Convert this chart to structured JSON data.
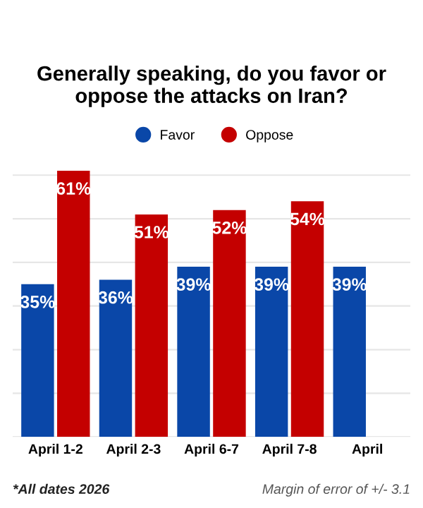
{
  "chart_data": {
    "type": "bar",
    "title": "Generally speaking, do you favor or oppose the attacks on Iran?",
    "categories": [
      "April 1-2",
      "April 2-3",
      "April 6-7",
      "April 7-8",
      "April"
    ],
    "series": [
      {
        "name": "Favor",
        "color": "#0a47a8",
        "values": [
          35,
          36,
          39,
          39,
          39
        ],
        "value_labels": [
          "35%",
          "36%",
          "39%",
          "39%",
          "39%"
        ]
      },
      {
        "name": "Oppose",
        "color": "#c40000",
        "values": [
          61,
          51,
          52,
          54,
          null
        ],
        "value_labels": [
          "61%",
          "51%",
          "52%",
          "54%",
          null
        ]
      }
    ],
    "tick_labels": "x",
    "grid": "y",
    "legend": "top",
    "marker": "circle",
    "annotations": [
      "*All dates 2026",
      "Margin of error of +/- 3.1"
    ]
  }
}
